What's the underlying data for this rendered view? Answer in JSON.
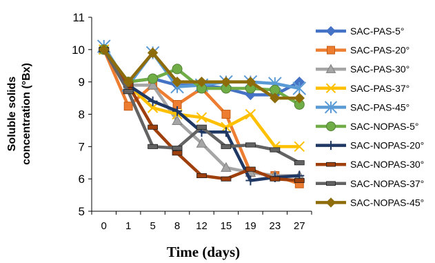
{
  "chart_data": {
    "type": "line",
    "xlabel": "Time (days)",
    "ylabel_line1": "Soluble solids",
    "ylabel_line2": "concentration (°Bx)",
    "categories": [
      "0",
      "1",
      "5",
      "8",
      "12",
      "15",
      "19",
      "23",
      "27"
    ],
    "ylim": [
      5,
      11
    ],
    "yticks": [
      5,
      6,
      7,
      8,
      9,
      10,
      11
    ],
    "grid": false,
    "legend_position": "right",
    "series": [
      {
        "name": "SAC-PAS-5°",
        "color": "#4472C4",
        "marker": "diamond",
        "values": [
          10.0,
          9.0,
          9.1,
          8.9,
          8.9,
          8.8,
          8.6,
          8.6,
          9.0
        ]
      },
      {
        "name": "SAC-PAS-20°",
        "color": "#ED7D31",
        "marker": "square",
        "values": [
          10.0,
          8.25,
          8.9,
          8.3,
          8.8,
          8.0,
          6.2,
          6.1,
          5.85
        ]
      },
      {
        "name": "SAC-PAS-30°",
        "color": "#A5A5A5",
        "marker": "triangle",
        "values": [
          10.0,
          8.9,
          8.9,
          7.8,
          7.1,
          6.35,
          6.2,
          6.1,
          6.1
        ]
      },
      {
        "name": "SAC-PAS-37°",
        "color": "#FFC000",
        "marker": "x",
        "values": [
          10.0,
          8.9,
          8.2,
          8.0,
          7.9,
          7.6,
          8.0,
          7.0,
          7.0
        ]
      },
      {
        "name": "SAC-PAS-45°",
        "color": "#5B9BD5",
        "marker": "star",
        "values": [
          10.1,
          8.9,
          9.9,
          8.85,
          8.9,
          9.0,
          9.0,
          8.95,
          8.8
        ]
      },
      {
        "name": "SAC-NOPAS-5°",
        "color": "#70AD47",
        "marker": "circle",
        "values": [
          10.0,
          9.0,
          9.1,
          9.4,
          8.8,
          8.8,
          8.8,
          8.75,
          8.3
        ]
      },
      {
        "name": "SAC-NOPAS-20°",
        "color": "#203864",
        "marker": "plus",
        "values": [
          10.0,
          8.9,
          8.4,
          8.1,
          7.45,
          7.45,
          5.95,
          6.05,
          6.1
        ]
      },
      {
        "name": "SAC-NOPAS-30°",
        "color": "#9E3F0C",
        "marker": "hbar",
        "values": [
          10.0,
          8.9,
          7.6,
          6.8,
          6.1,
          6.0,
          6.3,
          6.0,
          5.95
        ]
      },
      {
        "name": "SAC-NOPAS-37°",
        "color": "#636363",
        "marker": "hbar",
        "values": [
          10.0,
          8.7,
          7.0,
          6.95,
          7.6,
          7.0,
          7.05,
          6.9,
          6.5
        ]
      },
      {
        "name": "SAC-NOPAS-45°",
        "color": "#8E6C0A",
        "marker": "diamond",
        "values": [
          10.0,
          9.0,
          9.9,
          9.0,
          9.0,
          9.0,
          9.0,
          8.5,
          8.5
        ]
      }
    ]
  }
}
